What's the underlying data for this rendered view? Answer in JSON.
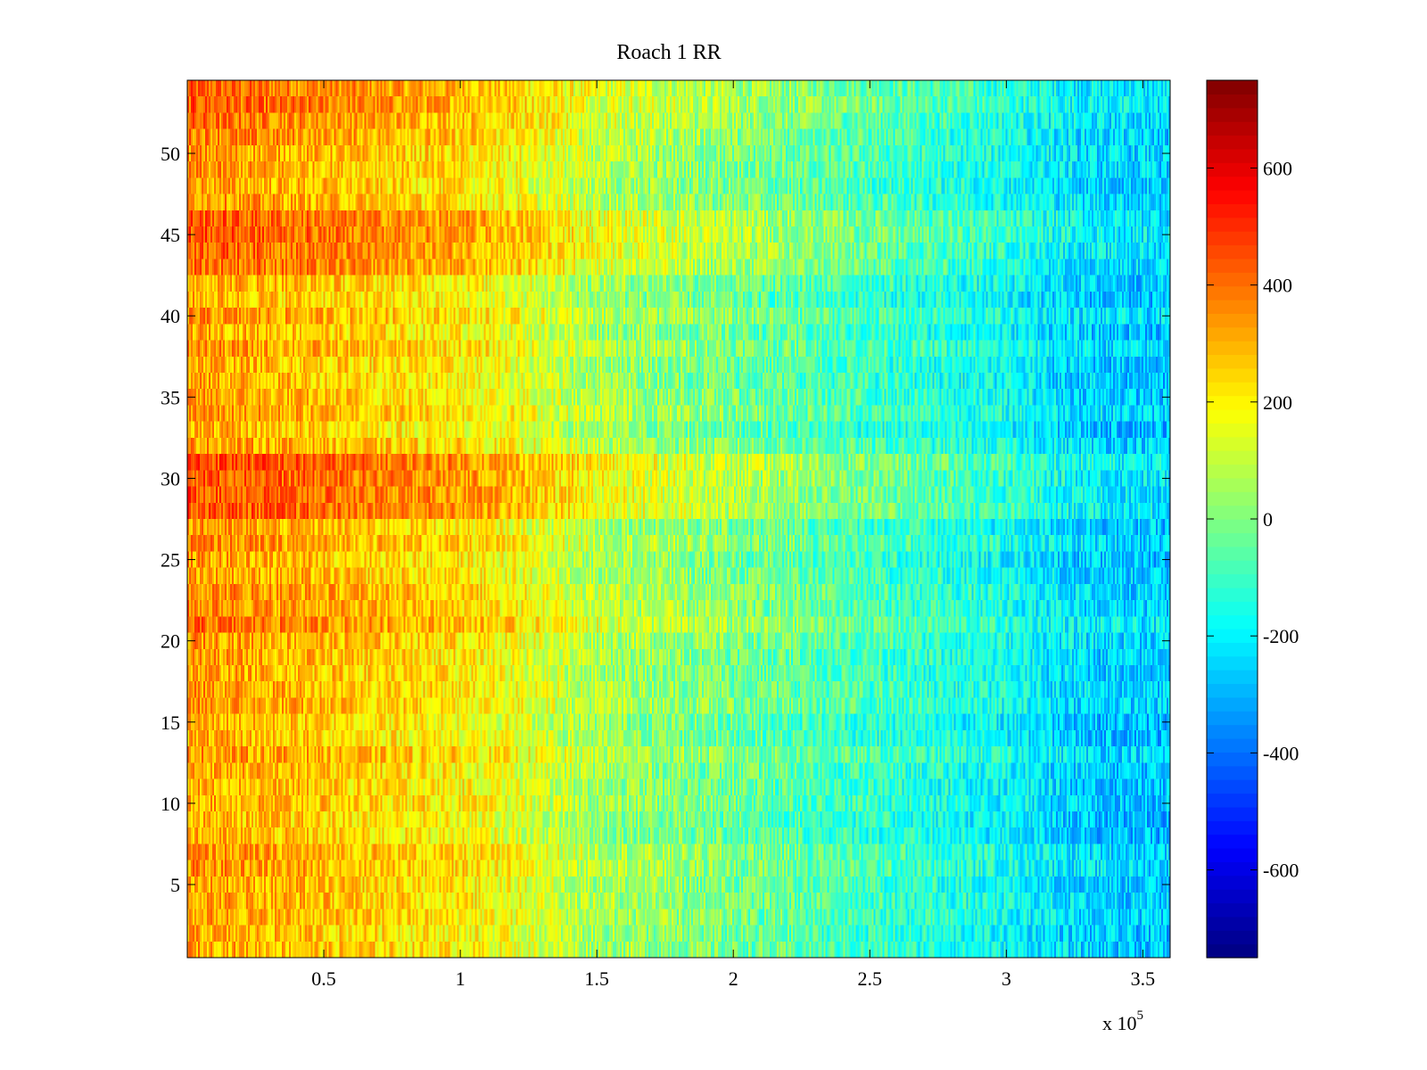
{
  "chart_data": {
    "type": "heatmap",
    "title": "Roach 1 RR",
    "xlabel": "",
    "ylabel": "",
    "x_multiplier_label": "x 10",
    "x_multiplier_exponent": "5",
    "xlim": [
      0,
      3.6
    ],
    "ylim": [
      0.5,
      54.5
    ],
    "x_ticks": [
      {
        "value": 0.5,
        "label": "0.5"
      },
      {
        "value": 1,
        "label": "1"
      },
      {
        "value": 1.5,
        "label": "1.5"
      },
      {
        "value": 2,
        "label": "2"
      },
      {
        "value": 2.5,
        "label": "2.5"
      },
      {
        "value": 3,
        "label": "3"
      },
      {
        "value": 3.5,
        "label": "3.5"
      }
    ],
    "y_ticks": [
      {
        "value": 5,
        "label": "5"
      },
      {
        "value": 10,
        "label": "10"
      },
      {
        "value": 15,
        "label": "15"
      },
      {
        "value": 20,
        "label": "20"
      },
      {
        "value": 25,
        "label": "25"
      },
      {
        "value": 30,
        "label": "30"
      },
      {
        "value": 35,
        "label": "35"
      },
      {
        "value": 40,
        "label": "40"
      },
      {
        "value": 45,
        "label": "45"
      },
      {
        "value": 50,
        "label": "50"
      }
    ],
    "colorbar": {
      "colormap": "jet",
      "range": [
        -750,
        750
      ],
      "ticks": [
        {
          "value": 600,
          "label": "600"
        },
        {
          "value": 400,
          "label": "400"
        },
        {
          "value": 200,
          "label": "200"
        },
        {
          "value": 0,
          "label": "0"
        },
        {
          "value": -200,
          "label": "-200"
        },
        {
          "value": -400,
          "label": "-400"
        },
        {
          "value": -600,
          "label": "-600"
        }
      ]
    },
    "rows": 54,
    "x_range": [
      0,
      3.6
    ],
    "trend_x": [
      0,
      0.5,
      1.0,
      1.2,
      1.5,
      2.0,
      2.5,
      3.0,
      3.3,
      3.6
    ],
    "trend_values": [
      330,
      270,
      210,
      160,
      60,
      -20,
      -100,
      -180,
      -250,
      -270
    ],
    "row_band_offsets": [
      {
        "rows": [
          51,
          54
        ],
        "offset": 80
      },
      {
        "rows": [
          43,
          46
        ],
        "offset": 110
      },
      {
        "rows": [
          28,
          31
        ],
        "offset": 130
      },
      {
        "rows": [
          21,
          23
        ],
        "offset": 60
      },
      {
        "rows": [
          25,
          27
        ],
        "offset": 30
      }
    ],
    "noise_amplitude": 120,
    "grid": false,
    "legend": "none"
  }
}
